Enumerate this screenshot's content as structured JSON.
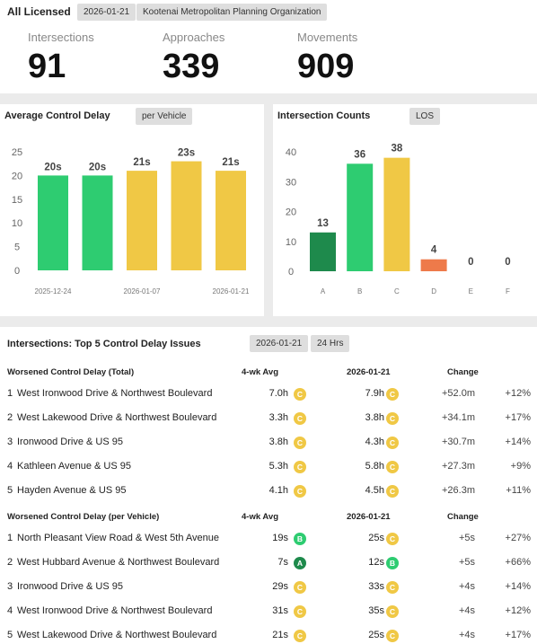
{
  "colors": {
    "A": "#1e8a4c",
    "B": "#2ecc71",
    "C": "#f0c845",
    "D": "#ee7a4a",
    "E": "#cccccc",
    "F": "#cccccc"
  },
  "summary": {
    "title": "All Licensed",
    "date": "2026-01-21",
    "org": "Kootenai Metropolitan Planning Organization",
    "stats": [
      {
        "label": "Intersections",
        "value": "91"
      },
      {
        "label": "Approaches",
        "value": "339"
      },
      {
        "label": "Movements",
        "value": "909"
      }
    ]
  },
  "delay_chart": {
    "title": "Average Control Delay",
    "pill": "per Vehicle",
    "chart_data": {
      "type": "bar",
      "categories": [
        "",
        "",
        "",
        "",
        ""
      ],
      "x_tick_labels": [
        "2025-12-24",
        "2026-01-07",
        "2026-01-21"
      ],
      "values": [
        20,
        20,
        21,
        23,
        21
      ],
      "data_labels": [
        "20s",
        "20s",
        "21s",
        "23s",
        "21s"
      ],
      "bar_los": [
        "B",
        "B",
        "C",
        "C",
        "C"
      ],
      "ylim": [
        0,
        25
      ],
      "yticks": [
        "0",
        "5",
        "10",
        "15",
        "20",
        "25"
      ]
    }
  },
  "counts_chart": {
    "title": "Intersection Counts",
    "pill": "LOS",
    "chart_data": {
      "type": "bar",
      "categories": [
        "A",
        "B",
        "C",
        "D",
        "E",
        "F"
      ],
      "values": [
        13,
        36,
        38,
        4,
        0,
        0
      ],
      "data_labels": [
        "13",
        "36",
        "38",
        "4",
        "0",
        "0"
      ],
      "ylim": [
        0,
        40
      ],
      "yticks": [
        "0",
        "10",
        "20",
        "30",
        "40"
      ]
    }
  },
  "table": {
    "title": "Intersections: Top 5 Control Delay Issues",
    "date": "2026-01-21",
    "period": "24 Hrs",
    "sections": [
      {
        "header": "Worsened Control Delay (Total)",
        "col_avg": "4-wk Avg",
        "col_cur": "2026-01-21",
        "col_chg": "Change",
        "rows": [
          {
            "rank": "1",
            "name": "West Ironwood Drive & Northwest Boulevard",
            "avg": "7.0h",
            "avg_los": "C",
            "cur": "7.9h",
            "cur_los": "C",
            "change": "+52.0m",
            "pct": "+12%"
          },
          {
            "rank": "2",
            "name": "West Lakewood Drive & Northwest Boulevard",
            "avg": "3.3h",
            "avg_los": "C",
            "cur": "3.8h",
            "cur_los": "C",
            "change": "+34.1m",
            "pct": "+17%"
          },
          {
            "rank": "3",
            "name": "Ironwood Drive & US 95",
            "avg": "3.8h",
            "avg_los": "C",
            "cur": "4.3h",
            "cur_los": "C",
            "change": "+30.7m",
            "pct": "+14%"
          },
          {
            "rank": "4",
            "name": "Kathleen Avenue & US 95",
            "avg": "5.3h",
            "avg_los": "C",
            "cur": "5.8h",
            "cur_los": "C",
            "change": "+27.3m",
            "pct": "+9%"
          },
          {
            "rank": "5",
            "name": "Hayden Avenue & US 95",
            "avg": "4.1h",
            "avg_los": "C",
            "cur": "4.5h",
            "cur_los": "C",
            "change": "+26.3m",
            "pct": "+11%"
          }
        ]
      },
      {
        "header": "Worsened Control Delay (per Vehicle)",
        "col_avg": "4-wk Avg",
        "col_cur": "2026-01-21",
        "col_chg": "Change",
        "rows": [
          {
            "rank": "1",
            "name": "North Pleasant View Road & West 5th Avenue",
            "avg": "19s",
            "avg_los": "B",
            "cur": "25s",
            "cur_los": "C",
            "change": "+5s",
            "pct": "+27%"
          },
          {
            "rank": "2",
            "name": "West Hubbard Avenue & Northwest Boulevard",
            "avg": "7s",
            "avg_los": "A",
            "cur": "12s",
            "cur_los": "B",
            "change": "+5s",
            "pct": "+66%"
          },
          {
            "rank": "3",
            "name": "Ironwood Drive & US 95",
            "avg": "29s",
            "avg_los": "C",
            "cur": "33s",
            "cur_los": "C",
            "change": "+4s",
            "pct": "+14%"
          },
          {
            "rank": "4",
            "name": "West Ironwood Drive & Northwest Boulevard",
            "avg": "31s",
            "avg_los": "C",
            "cur": "35s",
            "cur_los": "C",
            "change": "+4s",
            "pct": "+12%"
          },
          {
            "rank": "5",
            "name": "West Lakewood Drive & Northwest Boulevard",
            "avg": "21s",
            "avg_los": "C",
            "cur": "25s",
            "cur_los": "C",
            "change": "+4s",
            "pct": "+17%"
          }
        ]
      }
    ]
  }
}
